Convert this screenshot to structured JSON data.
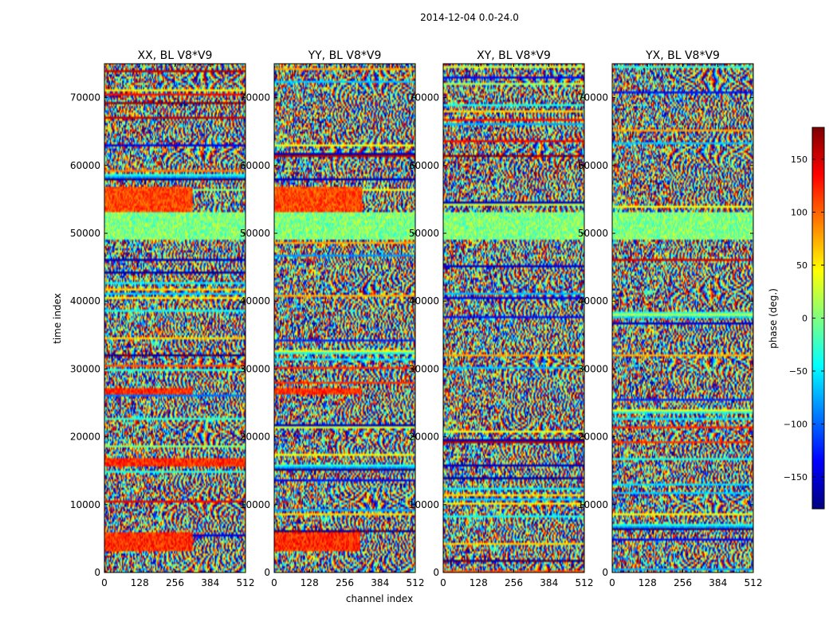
{
  "figure": {
    "suptitle": "2014-12-04 0.0-24.0",
    "xlabel": "channel index",
    "ylabel": "time index"
  },
  "colorbar": {
    "label": "phase (deg.)",
    "range": [
      -180,
      180
    ],
    "ticks": [
      150,
      100,
      50,
      0,
      -50,
      -100,
      -150
    ],
    "tick_labels": [
      "150",
      "100",
      "50",
      "0",
      "−50",
      "−100",
      "−150"
    ],
    "colormap": "jet",
    "stops": [
      "#00007f",
      "#0000ff",
      "#007fff",
      "#00ffff",
      "#7fff7f",
      "#ffff00",
      "#ff7f00",
      "#ff0000",
      "#7f0000"
    ]
  },
  "chart_data": [
    {
      "type": "heatmap",
      "title": "XX, BL V8*V9",
      "xlim": [
        0,
        512
      ],
      "ylim": [
        0,
        75000
      ],
      "xticks": [
        0,
        128,
        256,
        384,
        512
      ],
      "yticks": [
        0,
        10000,
        20000,
        30000,
        40000,
        50000,
        60000,
        70000
      ],
      "value": "phase (deg.)",
      "coherent_bands": [
        {
          "t0": 3000,
          "t1": 6000,
          "c0": 0,
          "c1": 320,
          "phase_deg": 120
        },
        {
          "t0": 15500,
          "t1": 16800,
          "c0": 0,
          "c1": 512,
          "phase_deg": 120
        },
        {
          "t0": 26200,
          "t1": 27200,
          "c0": 0,
          "c1": 320,
          "phase_deg": 120
        },
        {
          "t0": 53000,
          "t1": 57000,
          "c0": 0,
          "c1": 320,
          "phase_deg": 110
        },
        {
          "t0": 49000,
          "t1": 53000,
          "c0": 0,
          "c1": 512,
          "phase_deg": 0
        }
      ]
    },
    {
      "type": "heatmap",
      "title": "YY, BL V8*V9",
      "xlim": [
        0,
        512
      ],
      "ylim": [
        0,
        75000
      ],
      "xticks": [
        0,
        128,
        256,
        384,
        512
      ],
      "yticks": [
        0,
        10000,
        20000,
        30000,
        40000,
        50000,
        60000,
        70000
      ],
      "value": "phase (deg.)",
      "coherent_bands": [
        {
          "t0": 3000,
          "t1": 6000,
          "c0": 0,
          "c1": 310,
          "phase_deg": 120
        },
        {
          "t0": 26200,
          "t1": 27200,
          "c0": 0,
          "c1": 320,
          "phase_deg": 120
        },
        {
          "t0": 53000,
          "t1": 57000,
          "c0": 0,
          "c1": 320,
          "phase_deg": 110
        },
        {
          "t0": 49000,
          "t1": 53000,
          "c0": 0,
          "c1": 512,
          "phase_deg": 0
        }
      ]
    },
    {
      "type": "heatmap",
      "title": "XY, BL V8*V9",
      "xlim": [
        0,
        512
      ],
      "ylim": [
        0,
        75000
      ],
      "xticks": [
        0,
        128,
        256,
        384,
        512
      ],
      "yticks": [
        0,
        10000,
        20000,
        30000,
        40000,
        50000,
        60000,
        70000
      ],
      "value": "phase (deg.)",
      "coherent_bands": [
        {
          "t0": 49000,
          "t1": 53000,
          "c0": 0,
          "c1": 512,
          "phase_deg": 0
        }
      ]
    },
    {
      "type": "heatmap",
      "title": "YX, BL V8*V9",
      "xlim": [
        0,
        512
      ],
      "ylim": [
        0,
        75000
      ],
      "xticks": [
        0,
        128,
        256,
        384,
        512
      ],
      "yticks": [
        0,
        10000,
        20000,
        30000,
        40000,
        50000,
        60000,
        70000
      ],
      "value": "phase (deg.)",
      "coherent_bands": [
        {
          "t0": 49000,
          "t1": 53000,
          "c0": 0,
          "c1": 512,
          "phase_deg": 0
        }
      ]
    }
  ]
}
